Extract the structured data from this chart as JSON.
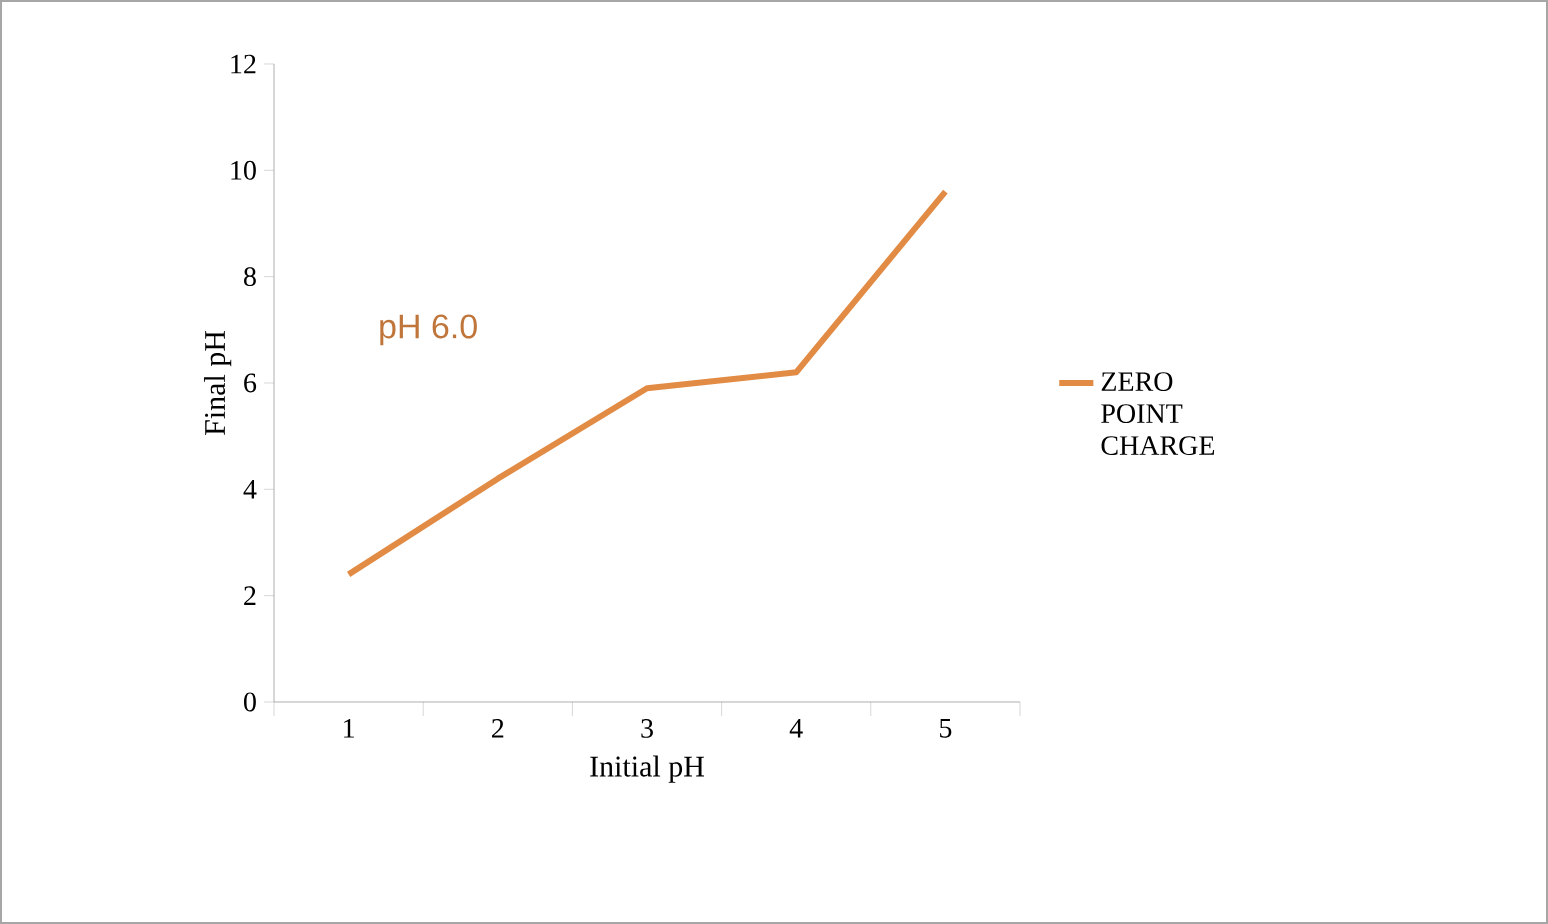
{
  "chart_data": {
    "type": "line",
    "xlabel": "Initial pH",
    "ylabel": "Final pH",
    "categories": [
      "1",
      "2",
      "3",
      "4",
      "5"
    ],
    "series": [
      {
        "name": "ZERO POINT CHARGE",
        "color": "#e28b45",
        "values": [
          2.4,
          4.2,
          5.9,
          6.2,
          9.6
        ]
      }
    ],
    "ylim": [
      0,
      12
    ],
    "yticks": [
      0,
      2,
      4,
      6,
      8,
      10,
      12
    ],
    "annotations": [
      "pH 6.0"
    ],
    "legend": "right",
    "marker": "none",
    "line_style": "solid",
    "grid": false
  }
}
